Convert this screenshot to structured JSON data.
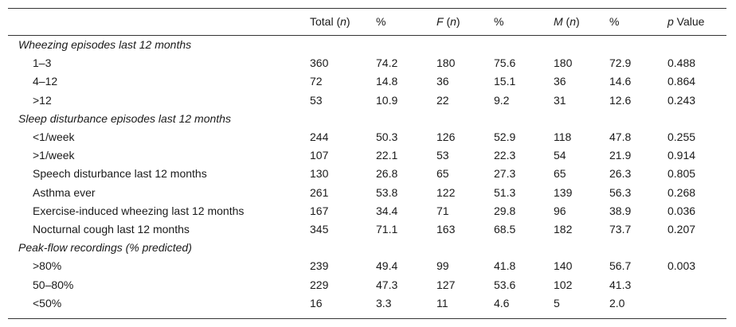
{
  "table": {
    "header": [
      [
        {
          "text": "Total ("
        },
        {
          "text": "n",
          "italic": true
        },
        {
          "text": ")"
        }
      ],
      [
        {
          "text": "%"
        }
      ],
      [
        {
          "text": "F",
          "italic": true
        },
        {
          "text": " ("
        },
        {
          "text": "n",
          "italic": true
        },
        {
          "text": ")"
        }
      ],
      [
        {
          "text": "%"
        }
      ],
      [
        {
          "text": "M",
          "italic": true
        },
        {
          "text": " ("
        },
        {
          "text": "n",
          "italic": true
        },
        {
          "text": ")"
        }
      ],
      [
        {
          "text": "%"
        }
      ],
      [
        {
          "text": "p",
          "italic": true
        },
        {
          "text": " Value"
        }
      ]
    ],
    "rows": [
      {
        "label": "Wheezing episodes last 12 months",
        "section": true
      },
      {
        "label": "1–3",
        "cells": [
          "360",
          "74.2",
          "180",
          "75.6",
          "180",
          "72.9",
          "0.488"
        ]
      },
      {
        "label": "4–12",
        "cells": [
          "72",
          "14.8",
          "36",
          "15.1",
          "36",
          "14.6",
          "0.864"
        ]
      },
      {
        "label": ">12",
        "cells": [
          "53",
          "10.9",
          "22",
          "9.2",
          "31",
          "12.6",
          "0.243"
        ]
      },
      {
        "label": "Sleep disturbance episodes last 12 months",
        "section": true
      },
      {
        "label": "<1/week",
        "cells": [
          "244",
          "50.3",
          "126",
          "52.9",
          "118",
          "47.8",
          "0.255"
        ]
      },
      {
        "label": ">1/week",
        "cells": [
          "107",
          "22.1",
          "53",
          "22.3",
          "54",
          "21.9",
          "0.914"
        ]
      },
      {
        "label": "Speech disturbance last 12 months",
        "cells": [
          "130",
          "26.8",
          "65",
          "27.3",
          "65",
          "26.3",
          "0.805"
        ]
      },
      {
        "label": "Asthma ever",
        "cells": [
          "261",
          "53.8",
          "122",
          "51.3",
          "139",
          "56.3",
          "0.268"
        ]
      },
      {
        "label": "Exercise-induced wheezing last 12 months",
        "cells": [
          "167",
          "34.4",
          "71",
          "29.8",
          "96",
          "38.9",
          "0.036"
        ]
      },
      {
        "label": "Nocturnal cough last 12 months",
        "cells": [
          "345",
          "71.1",
          "163",
          "68.5",
          "182",
          "73.7",
          "0.207"
        ]
      },
      {
        "label": "Peak-flow recordings (% predicted)",
        "section": true
      },
      {
        "label": ">80%",
        "cells": [
          "239",
          "49.4",
          "99",
          "41.8",
          "140",
          "56.7",
          "0.003"
        ]
      },
      {
        "label": "50–80%",
        "cells": [
          "229",
          "47.3",
          "127",
          "53.6",
          "102",
          "41.3"
        ]
      },
      {
        "label": "<50%",
        "cells": [
          "16",
          "3.3",
          "11",
          "4.6",
          "5",
          "2.0"
        ]
      }
    ]
  }
}
